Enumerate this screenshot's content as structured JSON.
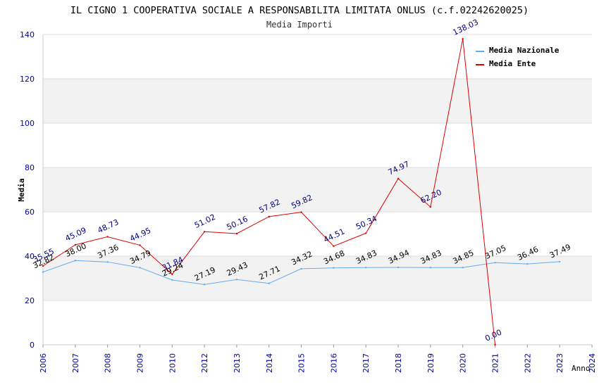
{
  "chart_data": {
    "type": "line",
    "title": "IL CIGNO 1 COOPERATIVA SOCIALE A RESPONSABILITA LIMITATA ONLUS (c.f.02242620025)",
    "subtitle": "Media Importi",
    "xlabel": "Anno",
    "ylabel": "Media",
    "ylim": [
      0,
      140
    ],
    "yticks": [
      "0",
      "20",
      "40",
      "60",
      "80",
      "100",
      "120",
      "140"
    ],
    "categories": [
      "2006",
      "2007",
      "2008",
      "2009",
      "2010",
      "2012",
      "2013",
      "2014",
      "2015",
      "2016",
      "2017",
      "2018",
      "2019",
      "2020",
      "2021",
      "2022",
      "2023",
      "2024"
    ],
    "legend_position": "top-right",
    "grid": "horizontal bands",
    "series": [
      {
        "name": "Media Nazionale",
        "color": "#66aaee",
        "label_color": "#000000",
        "values": [
          32.82,
          38.0,
          37.36,
          34.79,
          29.24,
          27.19,
          29.43,
          27.71,
          34.32,
          34.68,
          34.83,
          34.94,
          34.83,
          34.85,
          37.05,
          36.46,
          37.49,
          null
        ],
        "labels": [
          "32.82",
          "38.00",
          "37.36",
          "34.79",
          "29.24",
          "27.19",
          "29.43",
          "27.71",
          "34.32",
          "34.68",
          "34.83",
          "34.94",
          "34.83",
          "34.85",
          "37.05",
          "36.46",
          "37.49",
          ""
        ]
      },
      {
        "name": "Media Ente",
        "color": "#dd0000",
        "label_color": "#000080",
        "values": [
          35.55,
          45.09,
          48.73,
          44.95,
          31.84,
          51.02,
          50.16,
          57.82,
          59.82,
          44.51,
          50.34,
          74.97,
          62.2,
          138.03,
          0.0,
          null,
          null,
          null
        ],
        "labels": [
          "35.55",
          "45.09",
          "48.73",
          "44.95",
          "31.84",
          "51.02",
          "50.16",
          "57.82",
          "59.82",
          "44.51",
          "50.34",
          "74.97",
          "62.20",
          "138.03",
          "0.00",
          "",
          "",
          ""
        ]
      }
    ]
  }
}
